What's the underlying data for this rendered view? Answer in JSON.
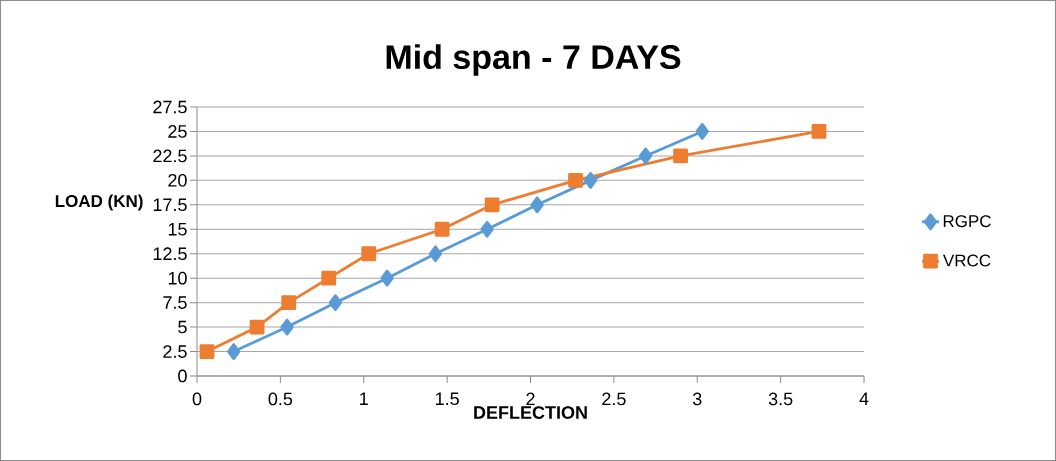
{
  "chart_data": {
    "type": "line",
    "title": "Mid span - 7 DAYS",
    "xlabel": "DEFLECTION",
    "ylabel": "LOAD (KN)",
    "xlim": [
      0,
      4
    ],
    "xticks": [
      0,
      0.5,
      1,
      1.5,
      2,
      2.5,
      3,
      3.5,
      4
    ],
    "ylim": [
      0,
      27.5
    ],
    "yticks": [
      0,
      2.5,
      5,
      7.5,
      10,
      12.5,
      15,
      17.5,
      20,
      22.5,
      25,
      27.5
    ],
    "grid": "y",
    "legend": "right",
    "line_style": "solid",
    "series": [
      {
        "name": "RGPC",
        "color": "#5b9bd5",
        "marker": "diamond",
        "x": [
          0.22,
          0.54,
          0.83,
          1.14,
          1.43,
          1.74,
          2.04,
          2.36,
          2.69,
          3.03
        ],
        "values": [
          2.5,
          5,
          7.5,
          10,
          12.5,
          15,
          17.5,
          20,
          22.5,
          25
        ]
      },
      {
        "name": "VRCC",
        "color": "#ed7d31",
        "marker": "square",
        "x": [
          0.06,
          0.36,
          0.55,
          0.79,
          1.03,
          1.47,
          1.77,
          2.27,
          2.9,
          3.73
        ],
        "values": [
          2.5,
          5,
          7.5,
          10,
          12.5,
          15,
          17.5,
          20,
          22.5,
          25
        ]
      }
    ]
  }
}
